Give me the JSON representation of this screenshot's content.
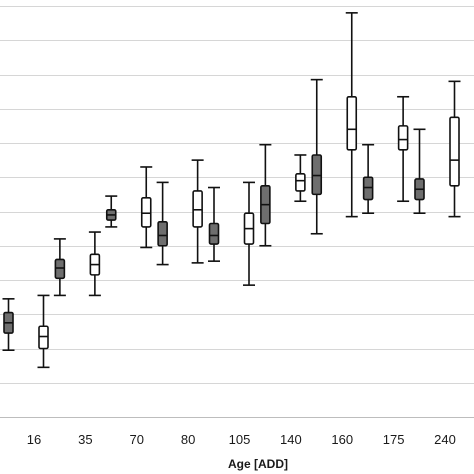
{
  "chart_data": {
    "type": "boxplot",
    "title": "",
    "xlabel": "Age [ADD]",
    "ylabel": "",
    "categories": [
      "16",
      "35",
      "70",
      "80",
      "105",
      "140",
      "160",
      "175",
      "240"
    ],
    "y_axis": {
      "min": 0,
      "max": 12,
      "gridlines": 12,
      "tick_labels_visible": false
    },
    "grid": true,
    "series": [
      {
        "fill": "#6e6e6e",
        "boxes": [
          {
            "min": 1.95,
            "q1": 2.45,
            "median": 2.75,
            "q3": 3.05,
            "max": 3.45
          },
          {
            "min": 3.55,
            "q1": 4.05,
            "median": 4.35,
            "q3": 4.6,
            "max": 5.2
          },
          {
            "min": 5.55,
            "q1": 5.75,
            "median": 5.9,
            "q3": 6.05,
            "max": 6.45
          },
          {
            "min": 4.45,
            "q1": 5.0,
            "median": 5.3,
            "q3": 5.7,
            "max": 6.85
          },
          {
            "min": 4.55,
            "q1": 5.05,
            "median": 5.3,
            "q3": 5.65,
            "max": 6.7
          },
          {
            "min": 5.0,
            "q1": 5.65,
            "median": 6.2,
            "q3": 6.75,
            "max": 7.95
          },
          {
            "min": 5.35,
            "q1": 6.5,
            "median": 7.05,
            "q3": 7.65,
            "max": 9.85
          },
          {
            "min": 5.95,
            "q1": 6.35,
            "median": 6.7,
            "q3": 7.0,
            "max": 7.95
          },
          {
            "min": 5.95,
            "q1": 6.35,
            "median": 6.65,
            "q3": 6.95,
            "max": 8.4
          }
        ]
      },
      {
        "fill": "#ffffff",
        "boxes": [
          {
            "min": 1.45,
            "q1": 2.0,
            "median": 2.35,
            "q3": 2.65,
            "max": 3.55
          },
          {
            "min": 3.55,
            "q1": 4.15,
            "median": 4.45,
            "q3": 4.75,
            "max": 5.4
          },
          {
            "min": 4.95,
            "q1": 5.55,
            "median": 5.95,
            "q3": 6.4,
            "max": 7.3
          },
          {
            "min": 4.5,
            "q1": 5.55,
            "median": 6.05,
            "q3": 6.6,
            "max": 7.5
          },
          {
            "min": 3.85,
            "q1": 5.05,
            "median": 5.5,
            "q3": 5.95,
            "max": 6.85
          },
          {
            "min": 6.3,
            "q1": 6.6,
            "median": 6.9,
            "q3": 7.1,
            "max": 7.65
          },
          {
            "min": 5.85,
            "q1": 7.8,
            "median": 8.4,
            "q3": 9.35,
            "max": 11.8
          },
          {
            "min": 6.3,
            "q1": 7.8,
            "median": 8.1,
            "q3": 8.5,
            "max": 9.35
          },
          {
            "min": 5.85,
            "q1": 6.75,
            "median": 7.5,
            "q3": 8.75,
            "max": 9.8
          }
        ]
      }
    ]
  }
}
